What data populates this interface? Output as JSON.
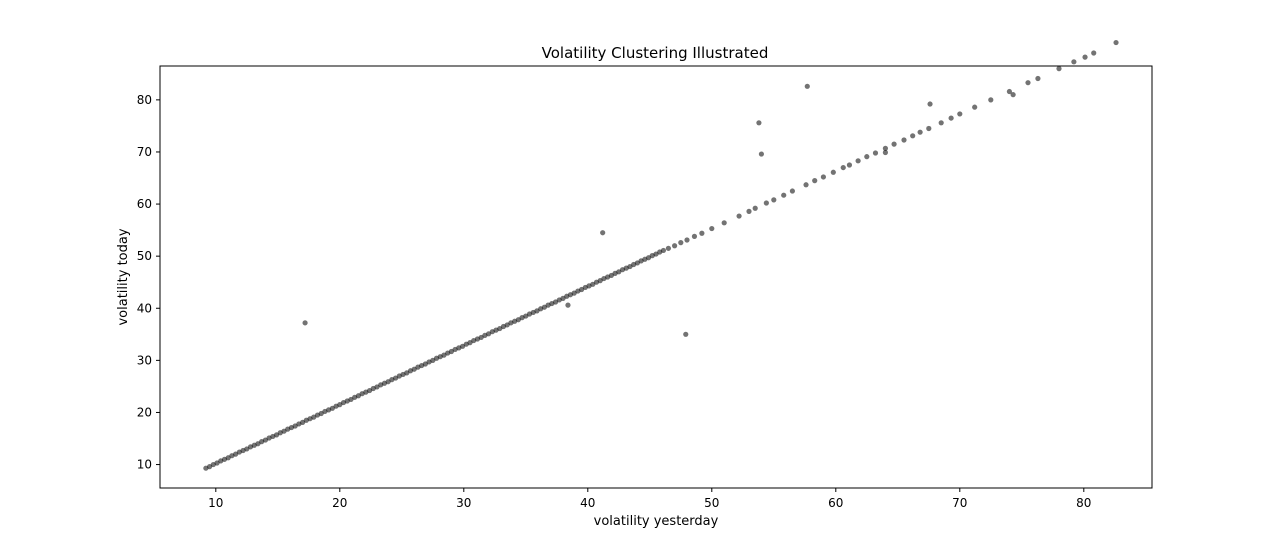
{
  "chart_data": {
    "type": "scatter",
    "title": "Volatility Clustering Illustrated",
    "xlabel": "volatility yesterday",
    "ylabel": "volatility today",
    "xlim": [
      5.5,
      85.5
    ],
    "ylim": [
      5.5,
      86.5
    ],
    "xticks": [
      10,
      20,
      30,
      40,
      50,
      60,
      70,
      80
    ],
    "yticks": [
      10,
      20,
      30,
      40,
      50,
      60,
      70,
      80
    ],
    "grid": false,
    "legend": "none",
    "point_color": "#000000",
    "point_opacity": 0.55,
    "series": [
      {
        "x": [
          9.2,
          9.5,
          9.8,
          10.1,
          10.4,
          10.7,
          11.0,
          11.3,
          11.6,
          11.9,
          12.2,
          12.5,
          12.8,
          13.1,
          13.4,
          13.7,
          14.0,
          14.3,
          14.6,
          14.9,
          15.2,
          15.5,
          15.8,
          16.1,
          16.4,
          16.7,
          17.0,
          17.3,
          17.6,
          17.9,
          18.2,
          18.5,
          18.8,
          19.1,
          19.4,
          19.7,
          20.0,
          20.3,
          20.6,
          20.9,
          21.2,
          21.5,
          21.8,
          22.1,
          22.4,
          22.7,
          23.0,
          23.3,
          23.6,
          23.9,
          24.2,
          24.5,
          24.8,
          25.1,
          25.4,
          25.7,
          26.0,
          26.3,
          26.6,
          26.9,
          27.2,
          27.5,
          27.8,
          28.1,
          28.4,
          28.7,
          29.0,
          29.3,
          29.6,
          29.9,
          30.2,
          30.5,
          30.8,
          31.1,
          31.4,
          31.7,
          32.0,
          32.3,
          32.6,
          32.9,
          33.2,
          33.5,
          33.8,
          34.1,
          34.4,
          34.7,
          35.0,
          35.3,
          35.6,
          35.9,
          36.2,
          36.5,
          36.8,
          37.1,
          37.4,
          37.7,
          38.0,
          38.3,
          38.6,
          38.9,
          39.2,
          39.5,
          39.8,
          40.1,
          40.4,
          40.7,
          41.0,
          41.3,
          41.6,
          41.9,
          42.2,
          42.5,
          42.8,
          43.1,
          43.4,
          43.7,
          44.0,
          44.3,
          44.6,
          44.9,
          45.2,
          45.5,
          45.8,
          46.1,
          46.5,
          47.0,
          47.5,
          48.0,
          48.6,
          49.2,
          50.0,
          51.0,
          52.2,
          53.0,
          53.5,
          54.4,
          55.0,
          55.8,
          56.5,
          57.6,
          58.3,
          59.0,
          59.8,
          60.6,
          61.1,
          61.8,
          62.5,
          63.2,
          64.0,
          64.7,
          65.5,
          66.2,
          66.8,
          67.5,
          68.5,
          69.3,
          70.0,
          71.2,
          72.5,
          74.0,
          75.5,
          76.3,
          78.0,
          79.2,
          80.1,
          80.8,
          82.6,
          17.2,
          38.4,
          41.2,
          47.9,
          53.8,
          57.7,
          54.0,
          67.6,
          74.3,
          64.0
        ],
        "y": [
          9.3,
          9.6,
          10.0,
          10.3,
          10.7,
          11.0,
          11.3,
          11.7,
          12.0,
          12.4,
          12.7,
          13.0,
          13.4,
          13.7,
          14.0,
          14.4,
          14.7,
          15.1,
          15.4,
          15.7,
          16.1,
          16.4,
          16.8,
          17.1,
          17.4,
          17.8,
          18.1,
          18.5,
          18.8,
          19.1,
          19.5,
          19.8,
          20.2,
          20.5,
          20.8,
          21.2,
          21.5,
          21.9,
          22.2,
          22.5,
          22.9,
          23.2,
          23.6,
          23.9,
          24.2,
          24.6,
          24.9,
          25.3,
          25.6,
          25.9,
          26.3,
          26.6,
          27.0,
          27.3,
          27.6,
          28.0,
          28.3,
          28.7,
          29.0,
          29.3,
          29.7,
          30.0,
          30.4,
          30.7,
          31.0,
          31.4,
          31.7,
          32.1,
          32.4,
          32.7,
          33.1,
          33.4,
          33.8,
          34.1,
          34.4,
          34.8,
          35.1,
          35.5,
          35.8,
          36.1,
          36.5,
          36.8,
          37.2,
          37.5,
          37.8,
          38.2,
          38.5,
          38.9,
          39.2,
          39.5,
          39.9,
          40.2,
          40.6,
          40.9,
          41.2,
          41.6,
          41.9,
          42.3,
          42.6,
          42.9,
          43.3,
          43.6,
          44.0,
          44.3,
          44.6,
          45.0,
          45.3,
          45.7,
          46.0,
          46.3,
          46.7,
          47.0,
          47.4,
          47.7,
          48.0,
          48.4,
          48.7,
          49.1,
          49.4,
          49.7,
          50.1,
          50.4,
          50.8,
          51.1,
          51.5,
          52.0,
          52.6,
          53.1,
          53.8,
          54.4,
          55.3,
          56.4,
          57.7,
          58.6,
          59.2,
          60.2,
          60.8,
          61.7,
          62.5,
          63.7,
          64.5,
          65.2,
          66.1,
          67.0,
          67.5,
          68.3,
          69.1,
          69.8,
          70.7,
          71.5,
          72.3,
          73.1,
          73.8,
          74.5,
          75.6,
          76.5,
          77.3,
          78.6,
          80.0,
          81.6,
          83.3,
          84.1,
          86.0,
          87.3,
          88.2,
          89.0,
          91.0,
          37.2,
          40.6,
          54.5,
          35.0,
          75.6,
          82.6,
          69.6,
          79.2,
          81.0,
          69.9
        ]
      }
    ]
  }
}
